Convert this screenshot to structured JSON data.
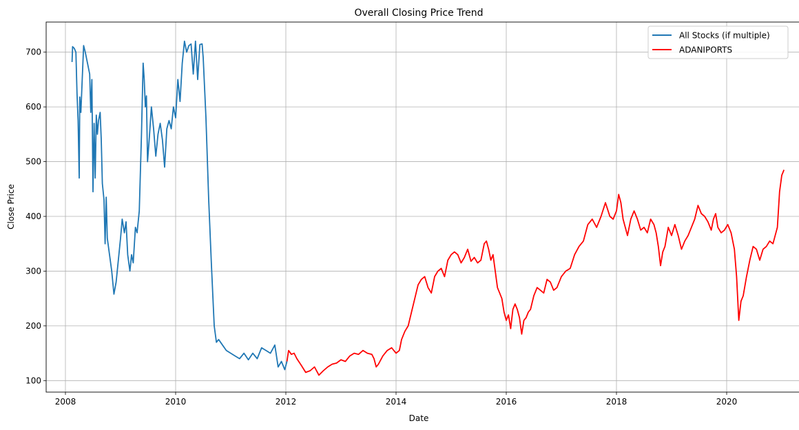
{
  "chart_data": {
    "type": "line",
    "title": "Overall Closing Price Trend",
    "xlabel": "Date",
    "ylabel": "Close Price",
    "xlim": [
      2007.65,
      2021.35
    ],
    "ylim": [
      79,
      755
    ],
    "xticks": [
      2008,
      2010,
      2012,
      2014,
      2016,
      2018,
      2020
    ],
    "xtick_labels": [
      "2008",
      "2010",
      "2012",
      "2014",
      "2016",
      "2018",
      "2020"
    ],
    "yticks": [
      100,
      200,
      300,
      400,
      500,
      600,
      700
    ],
    "ytick_labels": [
      "100",
      "200",
      "300",
      "400",
      "500",
      "600",
      "700"
    ],
    "grid": true,
    "legend_position": "top-right",
    "series": [
      {
        "name": "All Stocks (if multiple)",
        "color": "#1f77b4",
        "points": [
          [
            2008.12,
            682
          ],
          [
            2008.13,
            710
          ],
          [
            2008.16,
            707
          ],
          [
            2008.19,
            700
          ],
          [
            2008.21,
            625
          ],
          [
            2008.23,
            575
          ],
          [
            2008.25,
            470
          ],
          [
            2008.26,
            618
          ],
          [
            2008.28,
            590
          ],
          [
            2008.33,
            712
          ],
          [
            2008.36,
            700
          ],
          [
            2008.4,
            680
          ],
          [
            2008.44,
            660
          ],
          [
            2008.46,
            590
          ],
          [
            2008.48,
            650
          ],
          [
            2008.5,
            445
          ],
          [
            2008.52,
            570
          ],
          [
            2008.54,
            470
          ],
          [
            2008.56,
            585
          ],
          [
            2008.58,
            550
          ],
          [
            2008.6,
            575
          ],
          [
            2008.63,
            590
          ],
          [
            2008.65,
            540
          ],
          [
            2008.67,
            460
          ],
          [
            2008.7,
            430
          ],
          [
            2008.72,
            350
          ],
          [
            2008.74,
            435
          ],
          [
            2008.76,
            360
          ],
          [
            2008.8,
            330
          ],
          [
            2008.84,
            300
          ],
          [
            2008.88,
            258
          ],
          [
            2008.92,
            280
          ],
          [
            2008.96,
            320
          ],
          [
            2009.0,
            360
          ],
          [
            2009.03,
            395
          ],
          [
            2009.07,
            370
          ],
          [
            2009.1,
            390
          ],
          [
            2009.13,
            330
          ],
          [
            2009.17,
            300
          ],
          [
            2009.2,
            330
          ],
          [
            2009.23,
            315
          ],
          [
            2009.27,
            380
          ],
          [
            2009.3,
            370
          ],
          [
            2009.34,
            410
          ],
          [
            2009.38,
            550
          ],
          [
            2009.41,
            680
          ],
          [
            2009.43,
            650
          ],
          [
            2009.45,
            600
          ],
          [
            2009.47,
            620
          ],
          [
            2009.49,
            500
          ],
          [
            2009.52,
            540
          ],
          [
            2009.56,
            600
          ],
          [
            2009.6,
            560
          ],
          [
            2009.64,
            510
          ],
          [
            2009.68,
            550
          ],
          [
            2009.72,
            570
          ],
          [
            2009.76,
            540
          ],
          [
            2009.8,
            490
          ],
          [
            2009.84,
            560
          ],
          [
            2009.88,
            575
          ],
          [
            2009.92,
            560
          ],
          [
            2009.96,
            600
          ],
          [
            2010.0,
            580
          ],
          [
            2010.04,
            650
          ],
          [
            2010.08,
            610
          ],
          [
            2010.12,
            680
          ],
          [
            2010.16,
            720
          ],
          [
            2010.2,
            700
          ],
          [
            2010.24,
            712
          ],
          [
            2010.28,
            715
          ],
          [
            2010.32,
            660
          ],
          [
            2010.36,
            720
          ],
          [
            2010.4,
            650
          ],
          [
            2010.44,
            714
          ],
          [
            2010.48,
            715
          ],
          [
            2010.5,
            690
          ],
          [
            2010.55,
            580
          ],
          [
            2010.6,
            430
          ],
          [
            2010.65,
            310
          ],
          [
            2010.7,
            200
          ],
          [
            2010.74,
            170
          ],
          [
            2010.78,
            175
          ],
          [
            2010.85,
            165
          ],
          [
            2010.92,
            155
          ],
          [
            2011.0,
            150
          ],
          [
            2011.08,
            145
          ],
          [
            2011.16,
            140
          ],
          [
            2011.24,
            150
          ],
          [
            2011.32,
            138
          ],
          [
            2011.4,
            150
          ],
          [
            2011.48,
            140
          ],
          [
            2011.56,
            160
          ],
          [
            2011.64,
            155
          ],
          [
            2011.72,
            150
          ],
          [
            2011.8,
            165
          ],
          [
            2011.86,
            125
          ],
          [
            2011.92,
            135
          ],
          [
            2011.98,
            120
          ],
          [
            2012.02,
            135
          ]
        ]
      },
      {
        "name": "ADANIPORTS",
        "color": "#ff0000",
        "points": [
          [
            2012.02,
            135
          ],
          [
            2012.05,
            155
          ],
          [
            2012.1,
            148
          ],
          [
            2012.15,
            150
          ],
          [
            2012.2,
            140
          ],
          [
            2012.28,
            128
          ],
          [
            2012.36,
            115
          ],
          [
            2012.44,
            118
          ],
          [
            2012.52,
            125
          ],
          [
            2012.6,
            110
          ],
          [
            2012.68,
            118
          ],
          [
            2012.76,
            125
          ],
          [
            2012.84,
            130
          ],
          [
            2012.92,
            132
          ],
          [
            2013.0,
            138
          ],
          [
            2013.08,
            135
          ],
          [
            2013.16,
            145
          ],
          [
            2013.24,
            150
          ],
          [
            2013.32,
            148
          ],
          [
            2013.4,
            155
          ],
          [
            2013.48,
            150
          ],
          [
            2013.56,
            148
          ],
          [
            2013.6,
            140
          ],
          [
            2013.64,
            125
          ],
          [
            2013.68,
            130
          ],
          [
            2013.76,
            145
          ],
          [
            2013.84,
            155
          ],
          [
            2013.92,
            160
          ],
          [
            2014.0,
            150
          ],
          [
            2014.06,
            155
          ],
          [
            2014.1,
            175
          ],
          [
            2014.16,
            190
          ],
          [
            2014.22,
            200
          ],
          [
            2014.28,
            225
          ],
          [
            2014.34,
            250
          ],
          [
            2014.4,
            275
          ],
          [
            2014.46,
            285
          ],
          [
            2014.52,
            290
          ],
          [
            2014.58,
            270
          ],
          [
            2014.64,
            260
          ],
          [
            2014.7,
            290
          ],
          [
            2014.76,
            300
          ],
          [
            2014.82,
            305
          ],
          [
            2014.88,
            290
          ],
          [
            2014.94,
            320
          ],
          [
            2015.0,
            330
          ],
          [
            2015.06,
            335
          ],
          [
            2015.12,
            330
          ],
          [
            2015.18,
            315
          ],
          [
            2015.24,
            325
          ],
          [
            2015.3,
            340
          ],
          [
            2015.36,
            318
          ],
          [
            2015.42,
            325
          ],
          [
            2015.48,
            315
          ],
          [
            2015.54,
            320
          ],
          [
            2015.6,
            350
          ],
          [
            2015.64,
            355
          ],
          [
            2015.68,
            340
          ],
          [
            2015.72,
            320
          ],
          [
            2015.76,
            330
          ],
          [
            2015.8,
            300
          ],
          [
            2015.84,
            270
          ],
          [
            2015.88,
            260
          ],
          [
            2015.92,
            250
          ],
          [
            2015.96,
            225
          ],
          [
            2016.0,
            210
          ],
          [
            2016.04,
            220
          ],
          [
            2016.08,
            195
          ],
          [
            2016.12,
            230
          ],
          [
            2016.16,
            240
          ],
          [
            2016.2,
            230
          ],
          [
            2016.24,
            215
          ],
          [
            2016.28,
            185
          ],
          [
            2016.32,
            210
          ],
          [
            2016.36,
            215
          ],
          [
            2016.4,
            225
          ],
          [
            2016.44,
            230
          ],
          [
            2016.5,
            255
          ],
          [
            2016.56,
            270
          ],
          [
            2016.62,
            265
          ],
          [
            2016.68,
            260
          ],
          [
            2016.74,
            285
          ],
          [
            2016.8,
            280
          ],
          [
            2016.86,
            265
          ],
          [
            2016.92,
            270
          ],
          [
            2017.0,
            290
          ],
          [
            2017.08,
            300
          ],
          [
            2017.16,
            305
          ],
          [
            2017.24,
            330
          ],
          [
            2017.32,
            345
          ],
          [
            2017.4,
            355
          ],
          [
            2017.48,
            385
          ],
          [
            2017.56,
            395
          ],
          [
            2017.64,
            380
          ],
          [
            2017.72,
            400
          ],
          [
            2017.8,
            425
          ],
          [
            2017.88,
            400
          ],
          [
            2017.94,
            395
          ],
          [
            2018.0,
            410
          ],
          [
            2018.04,
            440
          ],
          [
            2018.08,
            425
          ],
          [
            2018.12,
            395
          ],
          [
            2018.16,
            380
          ],
          [
            2018.2,
            365
          ],
          [
            2018.26,
            395
          ],
          [
            2018.32,
            410
          ],
          [
            2018.38,
            395
          ],
          [
            2018.44,
            375
          ],
          [
            2018.5,
            380
          ],
          [
            2018.56,
            370
          ],
          [
            2018.62,
            395
          ],
          [
            2018.68,
            385
          ],
          [
            2018.72,
            370
          ],
          [
            2018.76,
            345
          ],
          [
            2018.8,
            310
          ],
          [
            2018.84,
            335
          ],
          [
            2018.88,
            345
          ],
          [
            2018.94,
            380
          ],
          [
            2019.0,
            365
          ],
          [
            2019.06,
            385
          ],
          [
            2019.12,
            365
          ],
          [
            2019.18,
            340
          ],
          [
            2019.24,
            355
          ],
          [
            2019.3,
            365
          ],
          [
            2019.36,
            380
          ],
          [
            2019.42,
            395
          ],
          [
            2019.48,
            420
          ],
          [
            2019.54,
            405
          ],
          [
            2019.6,
            400
          ],
          [
            2019.66,
            390
          ],
          [
            2019.72,
            375
          ],
          [
            2019.76,
            395
          ],
          [
            2019.8,
            405
          ],
          [
            2019.84,
            380
          ],
          [
            2019.9,
            370
          ],
          [
            2019.96,
            375
          ],
          [
            2020.02,
            385
          ],
          [
            2020.08,
            370
          ],
          [
            2020.14,
            340
          ],
          [
            2020.18,
            290
          ],
          [
            2020.22,
            210
          ],
          [
            2020.26,
            245
          ],
          [
            2020.3,
            255
          ],
          [
            2020.36,
            290
          ],
          [
            2020.42,
            320
          ],
          [
            2020.48,
            345
          ],
          [
            2020.54,
            340
          ],
          [
            2020.6,
            320
          ],
          [
            2020.66,
            340
          ],
          [
            2020.72,
            345
          ],
          [
            2020.78,
            355
          ],
          [
            2020.84,
            350
          ],
          [
            2020.88,
            365
          ],
          [
            2020.92,
            380
          ],
          [
            2020.96,
            445
          ],
          [
            2021.0,
            475
          ],
          [
            2021.04,
            485
          ]
        ]
      }
    ]
  }
}
